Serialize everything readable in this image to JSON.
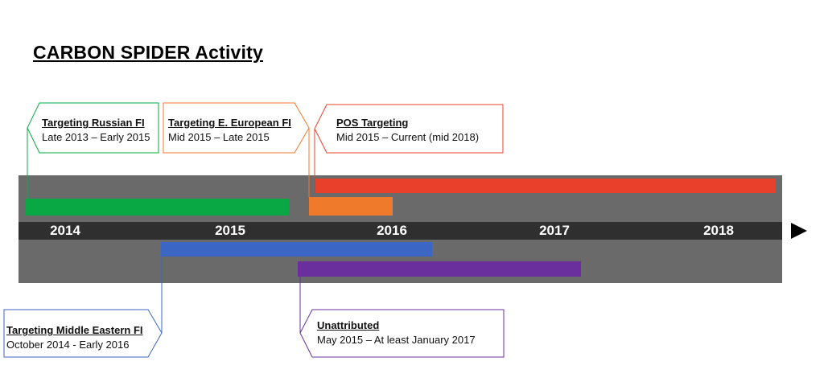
{
  "title": "CARBON SPIDER Activity",
  "timeline": {
    "years": [
      "2014",
      "2015",
      "2016",
      "2017",
      "2018"
    ]
  },
  "activities": [
    {
      "id": "russian",
      "title": "Targeting Russian FI",
      "dates": "Late 2013 – Early 2015",
      "color": "#0aa845"
    },
    {
      "id": "eeuropean",
      "title": "Targeting E. European FI",
      "dates": "Mid 2015 – Late 2015",
      "color": "#f07a2c"
    },
    {
      "id": "pos",
      "title": "POS Targeting",
      "dates": "Mid 2015 – Current (mid 2018)",
      "color": "#e8402b"
    },
    {
      "id": "middleeast",
      "title": "Targeting Middle Eastern FI",
      "dates": "October 2014 - Early 2016",
      "color": "#3b66c4"
    },
    {
      "id": "unattributed",
      "title": "Unattributed",
      "dates": "May 2015 – At least January 2017",
      "color": "#6a2f9c"
    }
  ]
}
